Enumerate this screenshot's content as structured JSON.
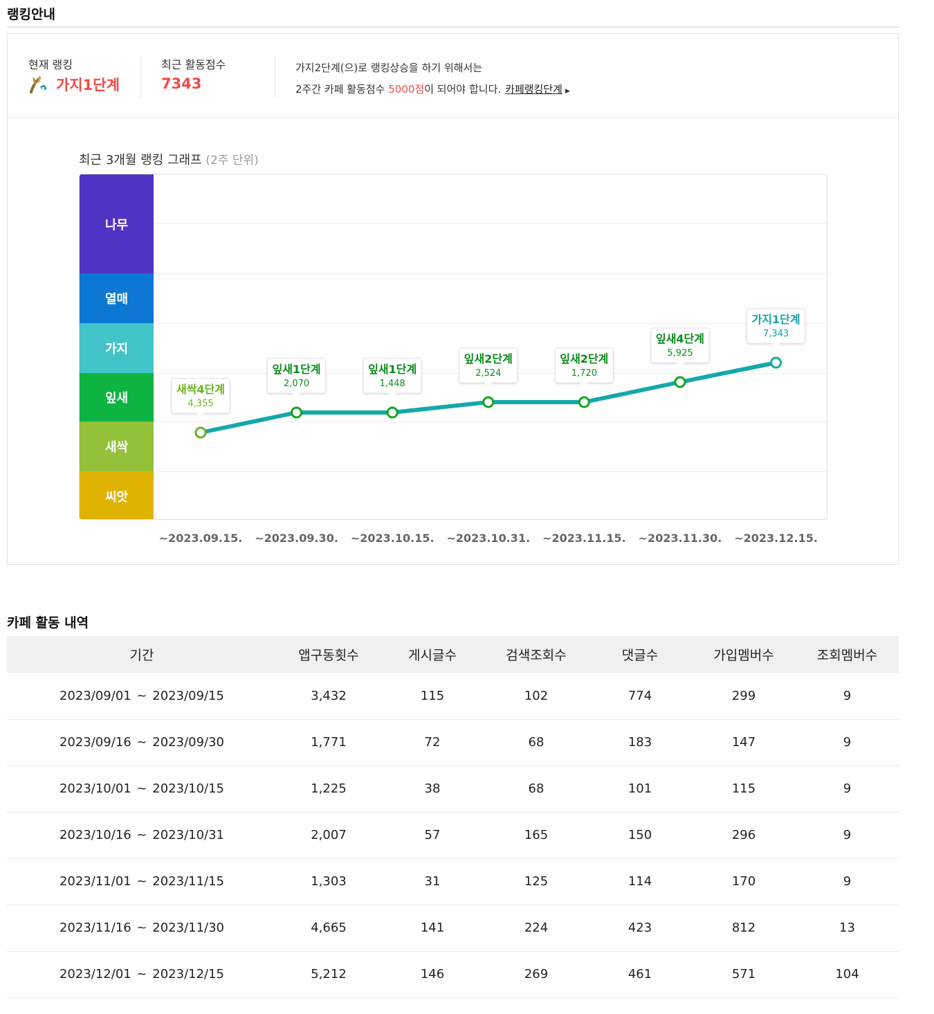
{
  "ranking_section": {
    "title": "랭킹안내",
    "current_rank_label": "현재 랭킹",
    "current_rank": "가지1단계",
    "score_label": "최근 활동점수",
    "score": "7343",
    "notice_line1": "가지2단계(으)로 랭킹상승을 하기 위해서는",
    "notice_line2_prefix": "2주간 카페 활동점수 ",
    "notice_line2_target": "5000점",
    "notice_line2_suffix": "이 되어야 합니다.",
    "notice_link": "카페랭킹단계",
    "link_arrow": "▶"
  },
  "graph": {
    "title": "최근 3개월 랭킹 그래프",
    "subtitle": "(2주 단위)"
  },
  "chart_data": {
    "type": "line",
    "bands": [
      {
        "name": "나무",
        "color": "#5133c5"
      },
      {
        "name": "열매",
        "color": "#0c78d3"
      },
      {
        "name": "가지",
        "color": "#42c4c8"
      },
      {
        "name": "잎새",
        "color": "#0db442"
      },
      {
        "name": "새싹",
        "color": "#94c13a"
      },
      {
        "name": "씨앗",
        "color": "#e1b301"
      }
    ],
    "x": [
      "~2023.09.15.",
      "~2023.09.30.",
      "~2023.10.15.",
      "~2023.10.31.",
      "~2023.11.15.",
      "~2023.11.30.",
      "~2023.12.15."
    ],
    "points": [
      {
        "level": "새싹4단계",
        "score": "4,355",
        "stage": "새싹",
        "step": 4
      },
      {
        "level": "잎새1단계",
        "score": "2,070",
        "stage": "잎새",
        "step": 1
      },
      {
        "level": "잎새1단계",
        "score": "1,448",
        "stage": "잎새",
        "step": 1
      },
      {
        "level": "잎새2단계",
        "score": "2,524",
        "stage": "잎새",
        "step": 2
      },
      {
        "level": "잎새2단계",
        "score": "1,720",
        "stage": "잎새",
        "step": 2
      },
      {
        "level": "잎새4단계",
        "score": "5,925",
        "stage": "잎새",
        "step": 4
      },
      {
        "level": "가지1단계",
        "score": "7,343",
        "stage": "가지",
        "step": 1
      }
    ],
    "line_color": "#14a8aa",
    "label_colors": {
      "새싹": "#6cb21f",
      "잎새": "#0a8c1b",
      "가지": "#14a1a3"
    }
  },
  "activity_section": {
    "title": "카페 활동 내역",
    "headers": [
      "기간",
      "앱구동횟수",
      "게시글수",
      "검색조회수",
      "댓글수",
      "가입멤버수",
      "조회멤버수"
    ],
    "rows": [
      [
        "2023/09/01 ~ 2023/09/15",
        "3,432",
        "115",
        "102",
        "774",
        "299",
        "9"
      ],
      [
        "2023/09/16 ~ 2023/09/30",
        "1,771",
        "72",
        "68",
        "183",
        "147",
        "9"
      ],
      [
        "2023/10/01 ~ 2023/10/15",
        "1,225",
        "38",
        "68",
        "101",
        "115",
        "9"
      ],
      [
        "2023/10/16 ~ 2023/10/31",
        "2,007",
        "57",
        "165",
        "150",
        "296",
        "9"
      ],
      [
        "2023/11/01 ~ 2023/11/15",
        "1,303",
        "31",
        "125",
        "114",
        "170",
        "9"
      ],
      [
        "2023/11/16 ~ 2023/11/30",
        "4,665",
        "141",
        "224",
        "423",
        "812",
        "13"
      ],
      [
        "2023/12/01 ~ 2023/12/15",
        "5,212",
        "146",
        "269",
        "461",
        "571",
        "104"
      ]
    ]
  }
}
